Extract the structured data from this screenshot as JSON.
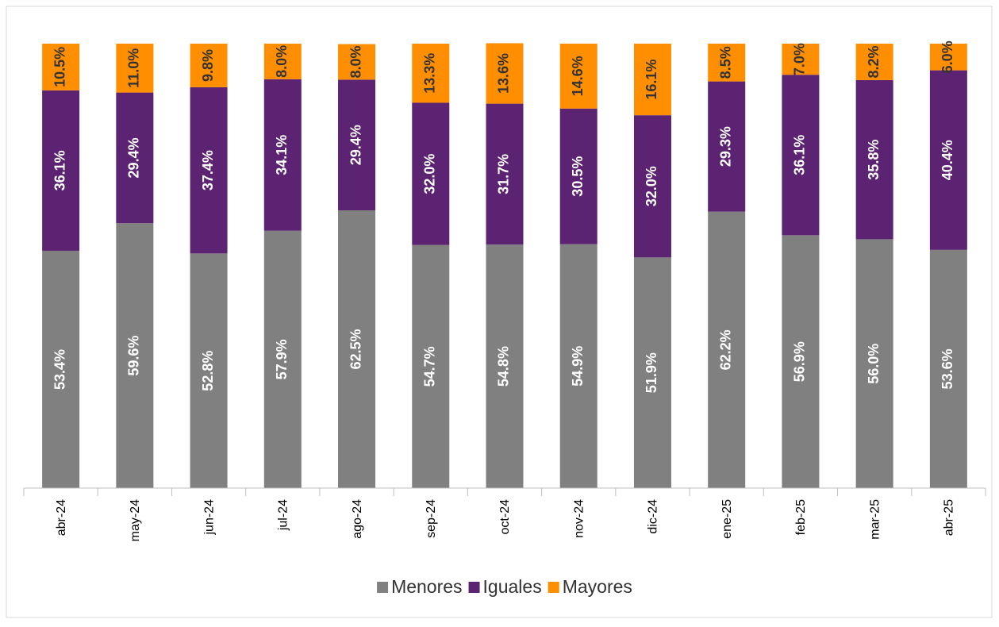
{
  "chart_data": {
    "type": "stacked_bar",
    "categories": [
      "abr-24",
      "may-24",
      "jun-24",
      "jul-24",
      "ago-24",
      "sep-24",
      "oct-24",
      "nov-24",
      "dic-24",
      "ene-25",
      "feb-25",
      "mar-25",
      "abr-25"
    ],
    "ylim": [
      0,
      100
    ],
    "series": [
      {
        "name": "Menores",
        "color": "#808080",
        "values": [
          53.4,
          59.6,
          52.8,
          57.9,
          62.5,
          54.7,
          54.8,
          54.9,
          51.9,
          62.2,
          56.9,
          56.0,
          53.6
        ],
        "value_labels": [
          "53.4%",
          "59.6%",
          "52.8%",
          "57.9%",
          "62.5%",
          "54.7%",
          "54.8%",
          "54.9%",
          "51.9%",
          "62.2%",
          "56.9%",
          "56.0%",
          "53.6%"
        ]
      },
      {
        "name": "Iguales",
        "color": "#5b2371",
        "values": [
          36.1,
          29.4,
          37.4,
          34.1,
          29.4,
          32.0,
          31.7,
          30.5,
          32.0,
          29.3,
          36.1,
          35.8,
          40.4
        ],
        "value_labels": [
          "36.1%",
          "29.4%",
          "37.4%",
          "34.1%",
          "29.4%",
          "32.0%",
          "31.7%",
          "30.5%",
          "32.0%",
          "29.3%",
          "36.1%",
          "35.8%",
          "40.4%"
        ]
      },
      {
        "name": "Mayores",
        "color": "#ff8f00",
        "values": [
          10.5,
          11.0,
          9.8,
          8.0,
          8.0,
          13.3,
          13.6,
          14.6,
          16.1,
          8.5,
          7.0,
          8.2,
          6.0
        ],
        "value_labels": [
          "10.5%",
          "11.0%",
          "9.8%",
          "8.0%",
          "8.0%",
          "13.3%",
          "13.6%",
          "14.6%",
          "16.1%",
          "8.5%",
          "7.0%",
          "8.2%",
          "6.0%"
        ]
      }
    ],
    "legend": "bottom"
  }
}
